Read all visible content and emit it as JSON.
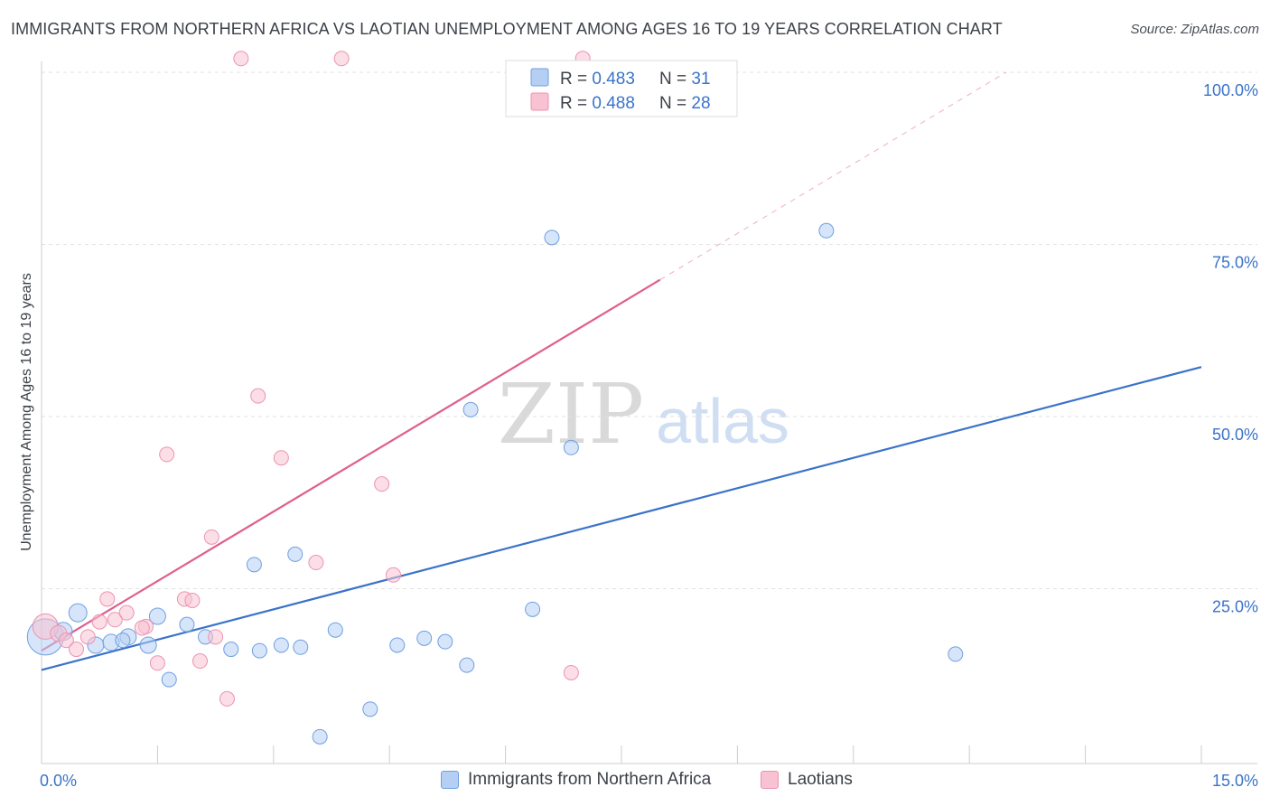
{
  "title": "IMMIGRANTS FROM NORTHERN AFRICA VS LAOTIAN UNEMPLOYMENT AMONG AGES 16 TO 19 YEARS CORRELATION CHART",
  "source": "Source: ZipAtlas.com",
  "watermark": {
    "zip": "ZIP",
    "atlas": "atlas"
  },
  "colors": {
    "blue": "#3a73c9",
    "blue_fill": "#b5cff4",
    "blue_stroke": "#6f9fe0",
    "pink": "#e05f8f",
    "pink_fill": "#f8c2d2",
    "pink_stroke": "#ec93b2",
    "grid": "#e2e2e2"
  },
  "legend": {
    "rows": [
      {
        "r_label": "R = ",
        "r_value": "0.483",
        "n_label": "N = ",
        "n_value": "31"
      },
      {
        "r_label": "R = ",
        "r_value": "0.488",
        "n_label": "N = ",
        "n_value": "28"
      }
    ]
  },
  "chart_data": {
    "type": "scatter",
    "title": "IMMIGRANTS FROM NORTHERN AFRICA VS LAOTIAN UNEMPLOYMENT AMONG AGES 16 TO 19 YEARS CORRELATION CHART",
    "xlabel": "",
    "ylabel": "Unemployment Among Ages 16 to 19 years",
    "xlim": [
      0,
      15
    ],
    "ylim": [
      0,
      100
    ],
    "x_tick_labels": [
      "0.0%",
      "15.0%"
    ],
    "y_tick_labels": [
      "25.0%",
      "50.0%",
      "75.0%",
      "100.0%"
    ],
    "y_ticks": [
      25,
      50,
      75,
      100
    ],
    "series": [
      {
        "name": "Immigrants from Northern Africa",
        "color": "#3a73c9",
        "R": 0.483,
        "N": 31,
        "trend": {
          "x": [
            0,
            15
          ],
          "y": [
            13.2,
            57.2
          ],
          "dashed_from": null
        },
        "points": [
          {
            "x": 0.05,
            "y": 18.0,
            "s": 20
          },
          {
            "x": 0.28,
            "y": 18.8,
            "s": 10
          },
          {
            "x": 0.47,
            "y": 21.5,
            "s": 10
          },
          {
            "x": 0.7,
            "y": 16.8,
            "s": 9
          },
          {
            "x": 0.9,
            "y": 17.2,
            "s": 9
          },
          {
            "x": 1.12,
            "y": 18.0,
            "s": 9
          },
          {
            "x": 1.5,
            "y": 21.0,
            "s": 9
          },
          {
            "x": 1.38,
            "y": 16.8,
            "s": 9
          },
          {
            "x": 1.65,
            "y": 11.8,
            "s": 8
          },
          {
            "x": 1.88,
            "y": 19.8,
            "s": 8
          },
          {
            "x": 2.12,
            "y": 18.0,
            "s": 8
          },
          {
            "x": 2.45,
            "y": 16.2,
            "s": 8
          },
          {
            "x": 2.75,
            "y": 28.5,
            "s": 8
          },
          {
            "x": 2.82,
            "y": 16.0,
            "s": 8
          },
          {
            "x": 3.1,
            "y": 16.8,
            "s": 8
          },
          {
            "x": 3.28,
            "y": 30.0,
            "s": 8
          },
          {
            "x": 3.35,
            "y": 16.5,
            "s": 8
          },
          {
            "x": 3.6,
            "y": 3.5,
            "s": 8
          },
          {
            "x": 3.8,
            "y": 19.0,
            "s": 8
          },
          {
            "x": 4.25,
            "y": 7.5,
            "s": 8
          },
          {
            "x": 4.6,
            "y": 16.8,
            "s": 8
          },
          {
            "x": 4.95,
            "y": 17.8,
            "s": 8
          },
          {
            "x": 5.22,
            "y": 17.3,
            "s": 8
          },
          {
            "x": 5.5,
            "y": 13.9,
            "s": 8
          },
          {
            "x": 5.55,
            "y": 51.0,
            "s": 8
          },
          {
            "x": 6.35,
            "y": 22.0,
            "s": 8
          },
          {
            "x": 6.6,
            "y": 76.0,
            "s": 8
          },
          {
            "x": 6.85,
            "y": 45.5,
            "s": 8
          },
          {
            "x": 10.15,
            "y": 77.0,
            "s": 8
          },
          {
            "x": 11.82,
            "y": 15.5,
            "s": 8
          },
          {
            "x": 1.05,
            "y": 17.5,
            "s": 8
          }
        ]
      },
      {
        "name": "Laotians",
        "color": "#e05f8f",
        "R": 0.488,
        "N": 28,
        "trend": {
          "x": [
            0,
            15
          ],
          "y": [
            16.0,
            117.0
          ],
          "dashed_from": 8.0
        },
        "points": [
          {
            "x": 0.05,
            "y": 19.5,
            "s": 14
          },
          {
            "x": 0.22,
            "y": 18.5,
            "s": 9
          },
          {
            "x": 0.32,
            "y": 17.5,
            "s": 8
          },
          {
            "x": 0.45,
            "y": 16.2,
            "s": 8
          },
          {
            "x": 0.6,
            "y": 18.0,
            "s": 8
          },
          {
            "x": 0.85,
            "y": 23.5,
            "s": 8
          },
          {
            "x": 0.95,
            "y": 20.5,
            "s": 8
          },
          {
            "x": 1.1,
            "y": 21.5,
            "s": 8
          },
          {
            "x": 1.35,
            "y": 19.5,
            "s": 8
          },
          {
            "x": 1.5,
            "y": 14.2,
            "s": 8
          },
          {
            "x": 1.62,
            "y": 44.5,
            "s": 8
          },
          {
            "x": 1.85,
            "y": 23.5,
            "s": 8
          },
          {
            "x": 1.95,
            "y": 23.3,
            "s": 8
          },
          {
            "x": 2.05,
            "y": 14.5,
            "s": 8
          },
          {
            "x": 2.2,
            "y": 32.5,
            "s": 8
          },
          {
            "x": 2.25,
            "y": 18.0,
            "s": 8
          },
          {
            "x": 2.4,
            "y": 9.0,
            "s": 8
          },
          {
            "x": 2.58,
            "y": 102.0,
            "s": 8
          },
          {
            "x": 2.8,
            "y": 53.0,
            "s": 8
          },
          {
            "x": 3.1,
            "y": 44.0,
            "s": 8
          },
          {
            "x": 3.55,
            "y": 28.8,
            "s": 8
          },
          {
            "x": 3.88,
            "y": 102.0,
            "s": 8
          },
          {
            "x": 4.4,
            "y": 40.2,
            "s": 8
          },
          {
            "x": 4.55,
            "y": 27.0,
            "s": 8
          },
          {
            "x": 6.85,
            "y": 12.8,
            "s": 8
          },
          {
            "x": 7.0,
            "y": 102.0,
            "s": 8
          },
          {
            "x": 1.3,
            "y": 19.3,
            "s": 8
          },
          {
            "x": 0.75,
            "y": 20.2,
            "s": 8
          }
        ]
      }
    ],
    "legend_position": "top-center",
    "bottom_legend": [
      "Immigrants from Northern Africa",
      "Laotians"
    ]
  }
}
